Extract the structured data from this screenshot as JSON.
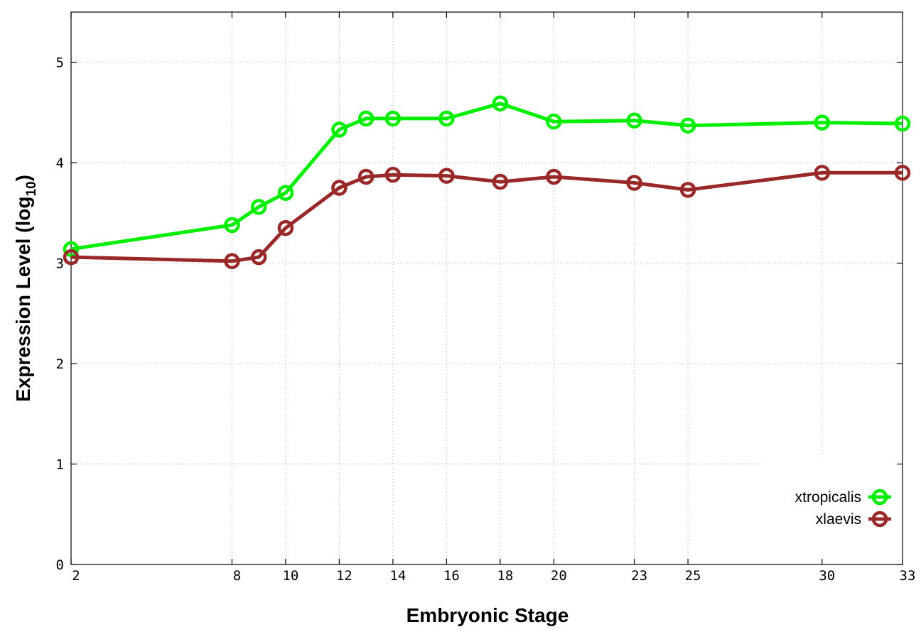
{
  "chart_data": {
    "type": "line",
    "title": "",
    "xlabel": "Embryonic Stage",
    "ylabel": {
      "main": "Expression Level (log",
      "sub": "10",
      "end": ")"
    },
    "x": [
      2,
      8,
      9,
      10,
      12,
      13,
      14,
      16,
      18,
      20,
      23,
      25,
      30,
      33
    ],
    "xticks": [
      2,
      8,
      10,
      12,
      14,
      16,
      18,
      20,
      23,
      25,
      30,
      33
    ],
    "yticks": [
      0,
      1,
      2,
      3,
      4,
      5
    ],
    "xlim": [
      2,
      33
    ],
    "ylim": [
      0,
      5.5
    ],
    "grid": true,
    "legend_position": "bottom-right",
    "series": [
      {
        "name": "xtropicalis",
        "color": "#00ee00",
        "values": [
          3.14,
          3.38,
          3.56,
          3.7,
          4.33,
          4.44,
          4.44,
          4.44,
          4.59,
          4.41,
          4.42,
          4.37,
          4.4,
          4.39
        ]
      },
      {
        "name": "xlaevis",
        "color": "#992929",
        "values": [
          3.06,
          3.02,
          3.06,
          3.35,
          3.75,
          3.86,
          3.88,
          3.87,
          3.81,
          3.86,
          3.8,
          3.73,
          3.9,
          3.9
        ]
      }
    ]
  }
}
